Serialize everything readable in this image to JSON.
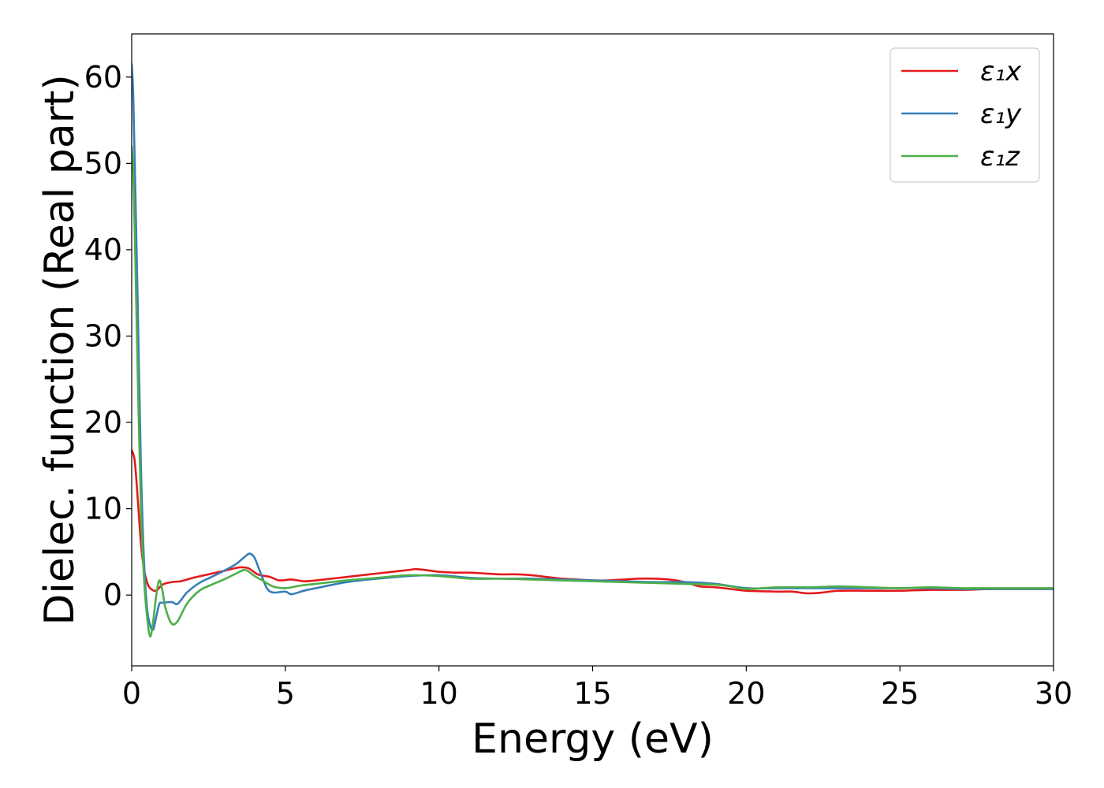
{
  "chart_data": {
    "type": "line",
    "title": "",
    "xlabel": "Energy (eV)",
    "ylabel": "Dielec. function (Real part)",
    "xlim": [
      0,
      30
    ],
    "ylim": [
      -8.2,
      65
    ],
    "xticks": [
      0,
      5,
      10,
      15,
      20,
      25,
      30
    ],
    "yticks": [
      0,
      10,
      20,
      30,
      40,
      50,
      60
    ],
    "grid": false,
    "legend_position": "top-right",
    "series": [
      {
        "name": "ε₁x",
        "color": "#e41a1c",
        "x": [
          0,
          0.1,
          0.2,
          0.3,
          0.4,
          0.5,
          0.6,
          0.8,
          1.0,
          1.3,
          1.6,
          2.0,
          2.5,
          3.0,
          3.5,
          3.8,
          4.1,
          4.5,
          4.8,
          5.2,
          5.6,
          6.0,
          7.0,
          8.0,
          9.0,
          9.3,
          10.0,
          10.5,
          11.0,
          11.5,
          12.0,
          12.5,
          13.0,
          13.5,
          14.0,
          14.5,
          15.0,
          15.5,
          16.0,
          16.5,
          17.0,
          17.5,
          18.0,
          18.5,
          19.0,
          19.5,
          20.0,
          21.0,
          21.5,
          22.0,
          22.5,
          23.0,
          24.0,
          25.0,
          26.0,
          27.0,
          28.0,
          29.0,
          30.0
        ],
        "y": [
          16.8,
          15.5,
          11.0,
          6.0,
          3.0,
          1.5,
          0.8,
          0.5,
          1.2,
          1.5,
          1.6,
          2.0,
          2.4,
          2.8,
          3.2,
          3.1,
          2.4,
          2.1,
          1.7,
          1.8,
          1.6,
          1.7,
          2.1,
          2.5,
          2.9,
          3.0,
          2.7,
          2.6,
          2.6,
          2.5,
          2.4,
          2.4,
          2.3,
          2.1,
          1.9,
          1.8,
          1.7,
          1.7,
          1.8,
          1.9,
          1.9,
          1.8,
          1.5,
          1.0,
          0.9,
          0.7,
          0.5,
          0.4,
          0.4,
          0.2,
          0.3,
          0.5,
          0.5,
          0.5,
          0.6,
          0.6,
          0.7,
          0.7,
          0.7
        ]
      },
      {
        "name": "ε₁y",
        "color": "#377eb8",
        "x": [
          0,
          0.05,
          0.1,
          0.2,
          0.3,
          0.4,
          0.5,
          0.6,
          0.7,
          0.8,
          0.9,
          1.0,
          1.3,
          1.5,
          1.8,
          2.2,
          2.6,
          3.0,
          3.4,
          3.7,
          3.85,
          4.0,
          4.2,
          4.4,
          4.6,
          5.0,
          5.2,
          5.6,
          6.0,
          7.0,
          8.0,
          9.0,
          10.0,
          11.0,
          12.0,
          13.0,
          14.0,
          15.0,
          16.0,
          17.0,
          18.0,
          19.0,
          20.0,
          21.0,
          22.0,
          23.0,
          24.0,
          25.0,
          26.0,
          27.0,
          28.0,
          29.0,
          30.0
        ],
        "y": [
          61.5,
          58.0,
          50.0,
          33.0,
          15.0,
          4.0,
          -1.5,
          -3.5,
          -4.0,
          -2.5,
          -1.0,
          -0.9,
          -0.8,
          -1.0,
          0.3,
          1.4,
          2.1,
          2.8,
          3.6,
          4.5,
          4.8,
          4.3,
          2.5,
          0.8,
          0.3,
          0.4,
          0.1,
          0.5,
          0.8,
          1.5,
          1.9,
          2.2,
          2.3,
          2.0,
          1.9,
          1.9,
          1.8,
          1.7,
          1.6,
          1.5,
          1.5,
          1.3,
          0.8,
          0.8,
          0.8,
          0.8,
          0.8,
          0.8,
          0.8,
          0.7,
          0.7,
          0.7,
          0.7
        ]
      },
      {
        "name": "ε₁z",
        "color": "#4daf4a",
        "x": [
          0,
          0.05,
          0.1,
          0.2,
          0.3,
          0.4,
          0.5,
          0.6,
          0.7,
          0.8,
          0.9,
          1.0,
          1.1,
          1.3,
          1.5,
          1.8,
          2.2,
          2.6,
          3.0,
          3.4,
          3.7,
          4.0,
          4.3,
          4.6,
          5.0,
          5.5,
          6.0,
          7.0,
          8.0,
          9.0,
          10.0,
          11.0,
          12.0,
          13.0,
          14.0,
          15.0,
          16.0,
          17.0,
          18.0,
          19.0,
          19.5,
          20.0,
          21.0,
          22.0,
          23.0,
          24.0,
          25.0,
          26.0,
          27.0,
          28.0,
          29.0,
          30.0
        ],
        "y": [
          52.0,
          49.0,
          42.0,
          25.0,
          10.0,
          2.0,
          -2.5,
          -4.8,
          -3.0,
          0.0,
          1.7,
          0.5,
          -1.5,
          -3.3,
          -3.0,
          -1.0,
          0.5,
          1.2,
          1.8,
          2.5,
          2.9,
          2.2,
          1.6,
          1.0,
          0.8,
          1.1,
          1.3,
          1.7,
          2.0,
          2.3,
          2.2,
          1.9,
          1.9,
          1.8,
          1.7,
          1.6,
          1.5,
          1.4,
          1.3,
          1.2,
          1.0,
          0.7,
          0.9,
          0.9,
          1.0,
          0.9,
          0.8,
          0.9,
          0.8,
          0.8,
          0.8,
          0.8
        ]
      }
    ]
  }
}
